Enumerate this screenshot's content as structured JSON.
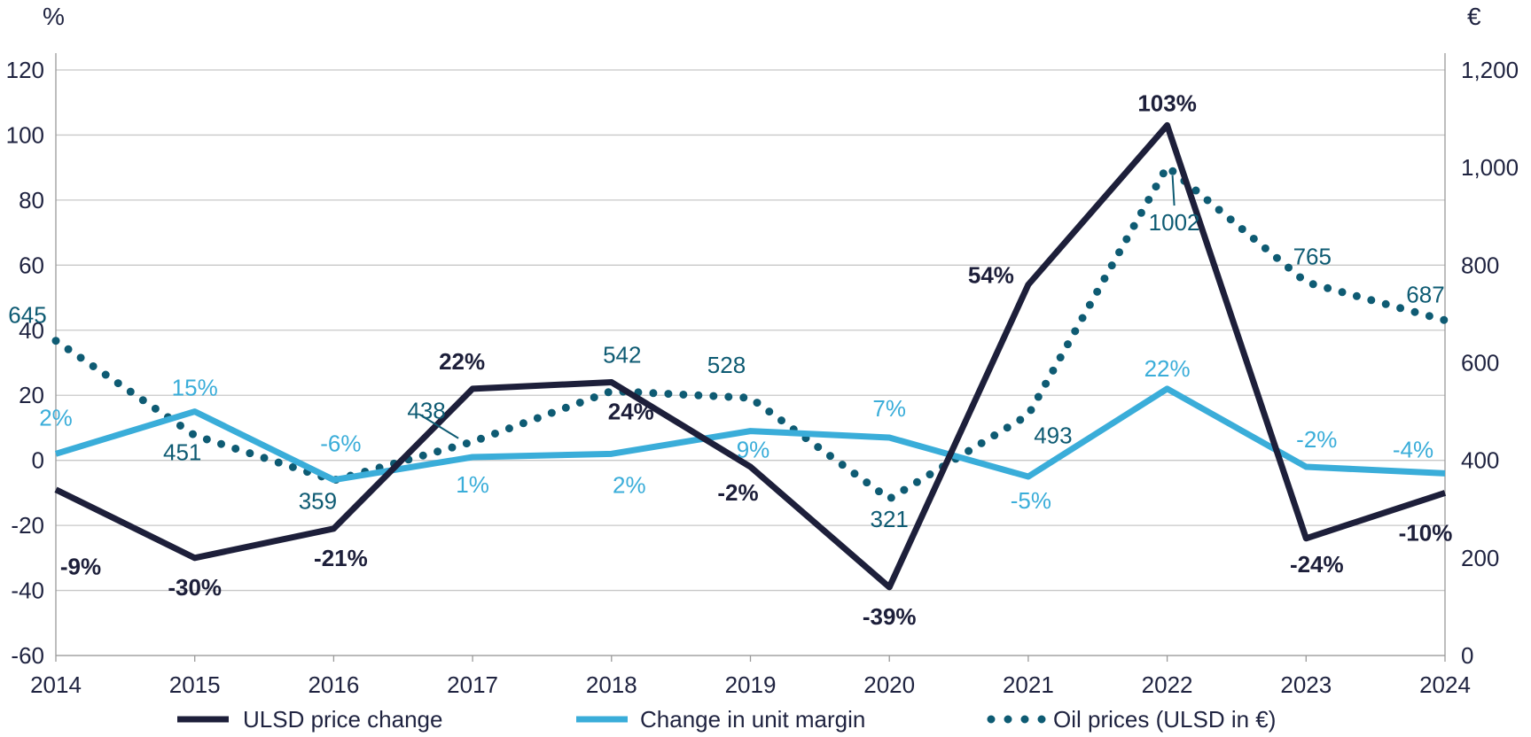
{
  "chart_data": {
    "type": "line",
    "left_axis_unit": "%",
    "right_axis_unit": "€",
    "left_ylim": [
      -60,
      120
    ],
    "right_ylim": [
      0,
      1200
    ],
    "left_ticks": [
      "120",
      "100",
      "80",
      "60",
      "40",
      "20",
      "0",
      "-20",
      "-40",
      "-60"
    ],
    "right_ticks": [
      "1,200",
      "1,000",
      "800",
      "600",
      "400",
      "200",
      "0"
    ],
    "grid": true,
    "legend_position": "bottom",
    "categories": [
      "2014",
      "2015",
      "2016",
      "2017",
      "2018",
      "2019",
      "2020",
      "2021",
      "2022",
      "2023",
      "2024"
    ],
    "series": [
      {
        "name": "ULSD price change",
        "axis": "left",
        "style": "solid",
        "color": "#1d1f3a",
        "values": [
          -9,
          -30,
          -21,
          22,
          24,
          -2,
          -39,
          54,
          103,
          -24,
          -10
        ],
        "labels": [
          "-9%",
          "-30%",
          "-21%",
          "22%",
          "24%",
          "-2%",
          "-39%",
          "54%",
          "103%",
          "-24%",
          "-10%"
        ]
      },
      {
        "name": "Change in unit margin",
        "axis": "left",
        "style": "solid",
        "color": "#3aadd9",
        "values": [
          2,
          15,
          -6,
          1,
          2,
          9,
          7,
          -5,
          22,
          -2,
          -4
        ],
        "labels": [
          "2%",
          "15%",
          "-6%",
          "1%",
          "2%",
          "9%",
          "7%",
          "-5%",
          "22%",
          "-2%",
          "-4%"
        ]
      },
      {
        "name": "Oil prices (ULSD in €)",
        "axis": "right",
        "style": "dotted",
        "color": "#0e5b73",
        "values": [
          645,
          451,
          359,
          438,
          542,
          528,
          321,
          493,
          1002,
          765,
          687
        ],
        "labels": [
          "645",
          "451",
          "359",
          "438",
          "542",
          "528",
          "321",
          "493",
          "1002",
          "765",
          "687"
        ]
      }
    ]
  }
}
